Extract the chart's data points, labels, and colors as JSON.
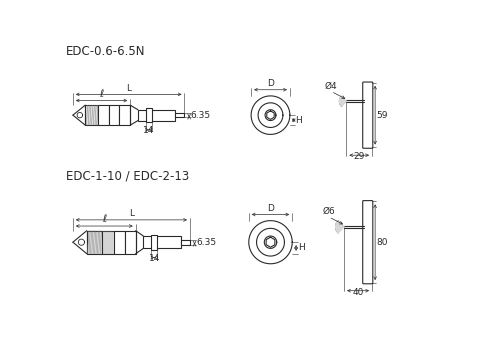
{
  "title1": "EDC-0.6-6.5N",
  "title2": "EDC-1-10 / EDC-2-13",
  "bg_color": "#ffffff",
  "line_color": "#2a2a2a",
  "dim_color": "#2a2a2a",
  "font_size_title": 8.5,
  "font_size_dim": 6.5,
  "dims_top": {
    "L": "L",
    "l": "ℓ",
    "shaft_w": "14",
    "shaft_d": "6.35",
    "D": "D",
    "H": "H",
    "phi4": "Ø4",
    "dim29": "29",
    "dim59": "59"
  },
  "dims_bot": {
    "L": "L",
    "l": "ℓ",
    "shaft_w": "14",
    "shaft_d": "6.35",
    "D": "D",
    "H": "H",
    "phi6": "Ø6",
    "dim40": "40",
    "dim80": "80"
  }
}
